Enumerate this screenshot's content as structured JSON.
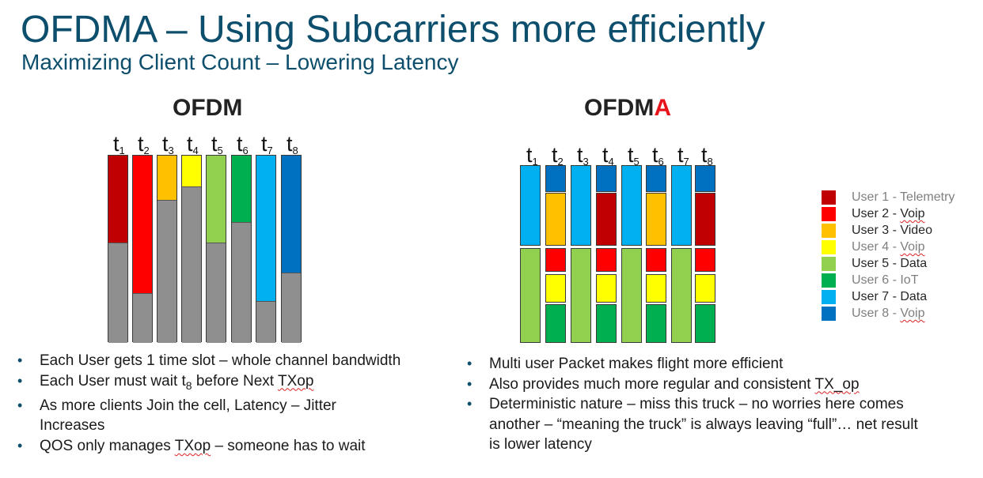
{
  "title": "OFDMA – Using Subcarriers more efficiently",
  "subtitle": "Maximizing Client Count – Lowering Latency",
  "colors": {
    "user1": "#c00000",
    "user2": "#ff0000",
    "user3": "#ffc000",
    "user4": "#ffff00",
    "user5": "#92d050",
    "user6": "#00b050",
    "user7": "#00b0f0",
    "user8": "#0070c0",
    "idle": "#8f8f8f"
  },
  "ofdm": {
    "heading": "OFDM",
    "time_labels": [
      {
        "t": "t",
        "sub": "1"
      },
      {
        "t": "t",
        "sub": "2"
      },
      {
        "t": "t",
        "sub": "3"
      },
      {
        "t": "t",
        "sub": "4"
      },
      {
        "t": "t",
        "sub": "5"
      },
      {
        "t": "t",
        "sub": "6"
      },
      {
        "t": "t",
        "sub": "7"
      },
      {
        "t": "t",
        "sub": "8"
      }
    ],
    "slots": [
      {
        "user": 1,
        "used_fraction": 0.47
      },
      {
        "user": 2,
        "used_fraction": 0.74
      },
      {
        "user": 3,
        "used_fraction": 0.24
      },
      {
        "user": 4,
        "used_fraction": 0.17
      },
      {
        "user": 5,
        "used_fraction": 0.47
      },
      {
        "user": 6,
        "used_fraction": 0.36
      },
      {
        "user": 7,
        "used_fraction": 0.78
      },
      {
        "user": 8,
        "used_fraction": 0.63
      }
    ],
    "bullets": [
      {
        "text": "Each User gets 1 time slot – whole channel bandwidth"
      },
      {
        "text": "Each User must wait t",
        "sub": "8",
        "tail": " before Next ",
        "sq": "TXop"
      },
      {
        "text": "As more clients Join the cell, Latency – Jitter Increases"
      },
      {
        "text": "QOS only manages ",
        "sq": "TXop",
        "tail": " – someone has to wait"
      }
    ]
  },
  "ofdma": {
    "heading_prefix": "OFDM",
    "heading_accent": "A",
    "time_labels": [
      {
        "t": "t",
        "sub": "1"
      },
      {
        "t": "t",
        "sub": "2"
      },
      {
        "t": "t",
        "sub": "3"
      },
      {
        "t": "t",
        "sub": "4"
      },
      {
        "t": "t",
        "sub": "5"
      },
      {
        "t": "t",
        "sub": "6"
      },
      {
        "t": "t",
        "sub": "7"
      },
      {
        "t": "t",
        "sub": "8"
      }
    ],
    "slots": [
      [
        7,
        5
      ],
      [
        8,
        3,
        2,
        4,
        6
      ],
      [
        7,
        5
      ],
      [
        8,
        1,
        2,
        4,
        6
      ],
      [
        7,
        5
      ],
      [
        8,
        3,
        2,
        4,
        6
      ],
      [
        7,
        5
      ],
      [
        8,
        1,
        2,
        4,
        6
      ]
    ],
    "bullets": [
      {
        "text": "Multi user Packet makes flight more efficient"
      },
      {
        "text": "Also provides much more regular and consistent ",
        "sq": "TX_op"
      },
      {
        "text": "Deterministic nature – miss this truck – no worries here comes another – “meaning the truck” is always leaving “full”… net result is lower latency"
      }
    ]
  },
  "legend": [
    {
      "user": 1,
      "label": "User 1 - Telemetry",
      "tone": "dim"
    },
    {
      "user": 2,
      "label": "User 2 - ",
      "sq": "Voip",
      "tone": "dark"
    },
    {
      "user": 3,
      "label": "User 3 - Video",
      "tone": "dark"
    },
    {
      "user": 4,
      "label": "User 4 - ",
      "sq": "Voip",
      "tone": "dim"
    },
    {
      "user": 5,
      "label": "User 5 - Data",
      "tone": "dark"
    },
    {
      "user": 6,
      "label": "User 6 - IoT",
      "tone": "dim"
    },
    {
      "user": 7,
      "label": "User 7 - Data",
      "tone": "dark"
    },
    {
      "user": 8,
      "label": "User 8 - ",
      "sq": "Voip",
      "tone": "dim"
    }
  ]
}
